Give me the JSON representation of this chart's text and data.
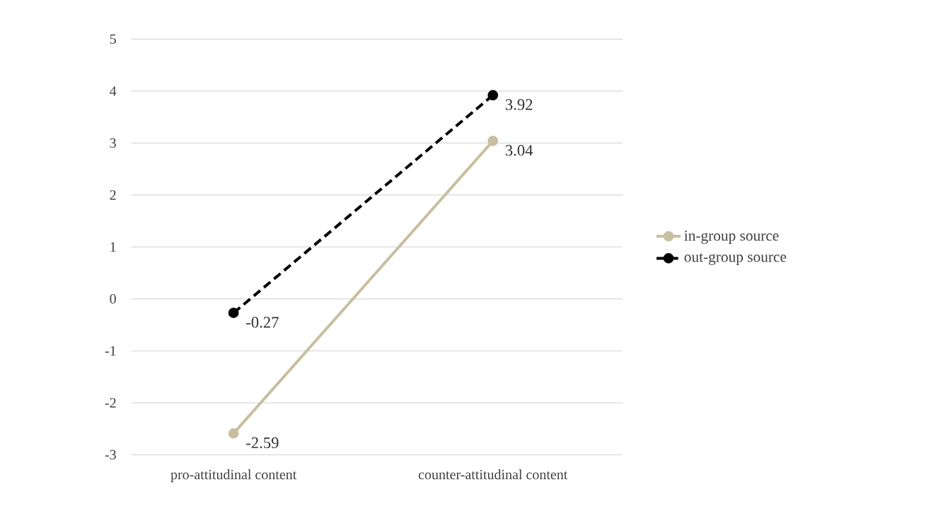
{
  "chart_data": {
    "type": "line",
    "categories": [
      "pro-attitudinal content",
      "counter-attitudinal content"
    ],
    "series": [
      {
        "name": "in-group source",
        "color": "#c7bf9e",
        "line_style": "solid",
        "values": [
          -2.59,
          3.04
        ]
      },
      {
        "name": "out-group source",
        "color": "#000000",
        "line_style": "dashed",
        "values": [
          -0.27,
          3.92
        ]
      }
    ],
    "marker": "circle",
    "data_labels": true,
    "grid": "y",
    "legend": "right",
    "ylim": [
      -3,
      5
    ],
    "yticks": [
      -3,
      -2,
      -1,
      0,
      1,
      2,
      3,
      4,
      5
    ]
  }
}
